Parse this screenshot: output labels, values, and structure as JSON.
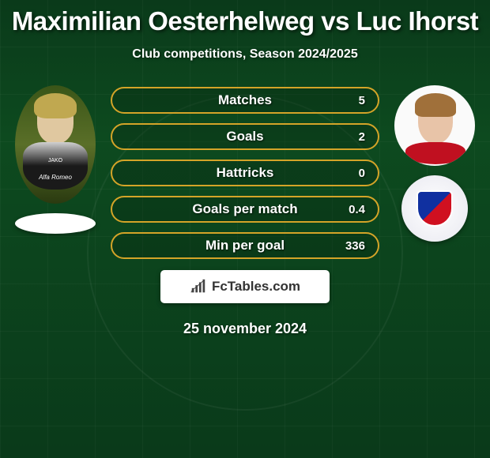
{
  "title": "Maximilian Oesterhelweg vs Luc Ihorst",
  "subtitle": "Club competitions, Season 2024/2025",
  "footer_brand": "FcTables.com",
  "footer_date": "25 november 2024",
  "pill_border_color": "#d4a428",
  "pill_bg_color": "rgba(10,40,18,0.35)",
  "player_left": {
    "name": "Maximilian Oesterhelweg",
    "jersey_sponsor_top": "JAKO",
    "jersey_sponsor_main": "Alfa Romeo"
  },
  "player_right": {
    "name": "Luc Ihorst",
    "club": "Unterhaching"
  },
  "stats": [
    {
      "label": "Matches",
      "value": "5"
    },
    {
      "label": "Goals",
      "value": "2"
    },
    {
      "label": "Hattricks",
      "value": "0"
    },
    {
      "label": "Goals per match",
      "value": "0.4"
    },
    {
      "label": "Min per goal",
      "value": "336"
    }
  ]
}
